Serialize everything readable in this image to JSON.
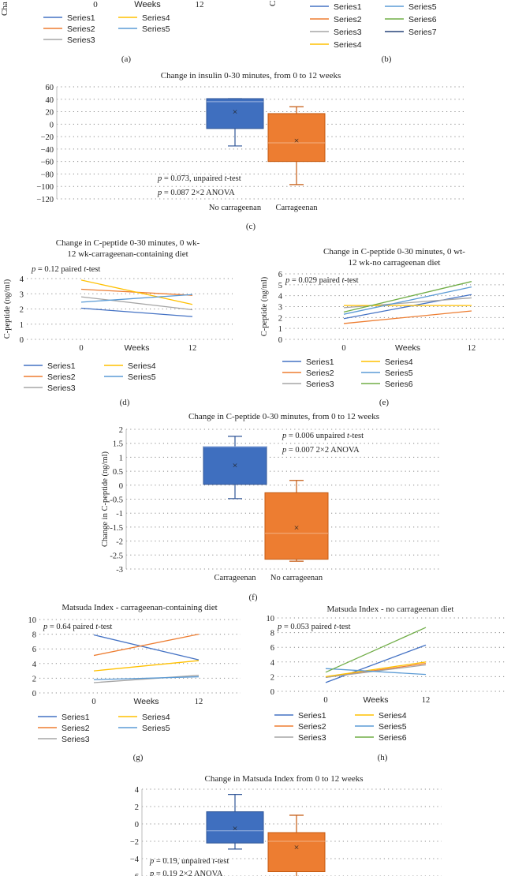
{
  "colors": {
    "blue": "#4472c4",
    "orange": "#ed7d31",
    "gray": "#a5a5a5",
    "yellow": "#ffc000",
    "lightblue": "#5b9bd5",
    "green": "#70ad47",
    "darkblue": "#264478",
    "box_blue": "#3f6fbf",
    "box_orange": "#ed7d31",
    "grid": "#8c8c8c"
  },
  "panel_labels": {
    "a": "(a)",
    "b": "(b)",
    "c": "(c)",
    "d": "(d)",
    "e": "(e)",
    "f": "(f)",
    "g": "(g)",
    "h": "(h)"
  },
  "top_fragments": {
    "a_ylabel_partial": "Cha",
    "a_tick0": "0",
    "a_tick12": "12",
    "a_xlabel": "Weeks",
    "b_ylabel_partial": "C",
    "a_legend": [
      "Series1",
      "Series4",
      "Series2",
      "Series5",
      "Series3"
    ],
    "b_legend": [
      "Series1",
      "Series5",
      "Series2",
      "Series6",
      "Series3",
      "Series7",
      "Series4"
    ]
  },
  "chart_data": [
    {
      "id": "c",
      "type": "box",
      "title": "Change in insulin 0-30 minutes, from 0 to 12 weeks",
      "ylim": [
        -120,
        60
      ],
      "yticks": [
        "60",
        "40",
        "20",
        "0",
        "−20",
        "−40",
        "−60",
        "−80",
        "−100",
        "−120"
      ],
      "categories": [
        "No carrageenan",
        "Carrageenan"
      ],
      "boxes": [
        {
          "min": -35,
          "q1": -7,
          "median": 36,
          "q3": 41,
          "max": 41,
          "mean": 20
        },
        {
          "min": -97,
          "q1": -60,
          "median": -30,
          "q3": 17,
          "max": 28,
          "mean": -26
        }
      ],
      "annotations": [
        {
          "p": "p",
          "rest": " = 0.073, unpaired ",
          "t": "t",
          "tail": "-test"
        },
        {
          "p": "p",
          "rest": " = 0.087 2×2 ANOVA",
          "t": "",
          "tail": ""
        }
      ]
    },
    {
      "id": "d",
      "type": "line",
      "title_lines": [
        "Change in C-peptide 0-30 minutes, 0 wk-",
        "12 wk-carrageenan-containing diet"
      ],
      "ylabel": "C-peptide (ng/ml)",
      "xlabel": "Weeks",
      "ylim": [
        0,
        4
      ],
      "yticks": [
        "0",
        "1",
        "2",
        "3",
        "4"
      ],
      "x": [
        "0",
        "12"
      ],
      "series": [
        {
          "name": "Series1",
          "values": [
            2.05,
            1.5
          ]
        },
        {
          "name": "Series2",
          "values": [
            3.3,
            2.9
          ]
        },
        {
          "name": "Series3",
          "values": [
            2.8,
            1.95
          ]
        },
        {
          "name": "Series4",
          "values": [
            3.9,
            2.3
          ]
        },
        {
          "name": "Series5",
          "values": [
            2.45,
            2.95
          ]
        }
      ],
      "annotation": {
        "p": "p",
        "rest": " = 0.12 paired ",
        "t": "t",
        "tail": "-test"
      }
    },
    {
      "id": "e",
      "type": "line",
      "title_lines": [
        "Change in C-peptide 0-30 minutes, 0 wt-",
        "12 wk-no carrageenan diet"
      ],
      "ylabel": "C-peptide (ng/ml)",
      "xlabel": "Weeks",
      "ylim": [
        0,
        6
      ],
      "yticks": [
        "0",
        "1",
        "2",
        "3",
        "4",
        "5",
        "6"
      ],
      "x": [
        "0",
        "12"
      ],
      "series": [
        {
          "name": "Series1",
          "values": [
            1.9,
            4.1
          ]
        },
        {
          "name": "Series2",
          "values": [
            1.45,
            2.6
          ]
        },
        {
          "name": "Series3",
          "values": [
            2.9,
            3.8
          ]
        },
        {
          "name": "Series4",
          "values": [
            3.1,
            3.1
          ]
        },
        {
          "name": "Series5",
          "values": [
            2.3,
            4.8
          ]
        },
        {
          "name": "Series6",
          "values": [
            2.5,
            5.3
          ]
        }
      ],
      "annotation": {
        "p": "p",
        "rest": " = 0.029 paired ",
        "t": "t",
        "tail": "-test"
      }
    },
    {
      "id": "f",
      "type": "box",
      "title": "Change in C-peptide 0-30 minutes, from 0 to 12 weeks",
      "ylabel": "Change in C-peptide (ng/ml)",
      "ylim": [
        -3,
        2
      ],
      "yticks": [
        "2",
        "1.5",
        "1",
        "0.5",
        "0",
        "-0.5",
        "-1",
        "-1.5",
        "-2",
        "-2.5",
        "-3"
      ],
      "categories": [
        "Carrageenan",
        "No carrageenan"
      ],
      "boxes": [
        {
          "min": -0.48,
          "q1": 0.03,
          "median": 1.38,
          "q3": 1.38,
          "max": 1.75,
          "mean": 0.72
        },
        {
          "min": -2.72,
          "q1": -2.65,
          "median": -1.72,
          "q3": -0.27,
          "max": 0.17,
          "mean": -1.52
        }
      ],
      "annotations": [
        {
          "p": "p",
          "rest": " = 0.006 unpaired ",
          "t": "t",
          "tail": "-test"
        },
        {
          "p": "p",
          "rest": " = 0.007 2×2 ANOVA",
          "t": "",
          "tail": ""
        }
      ]
    },
    {
      "id": "g",
      "type": "line",
      "title": "Matsuda Index - carrageenan-containing diet",
      "xlabel": "Weeks",
      "ylim": [
        0,
        10
      ],
      "yticks": [
        "0",
        "2",
        "4",
        "6",
        "8",
        "10"
      ],
      "x": [
        "0",
        "12"
      ],
      "series": [
        {
          "name": "Series1",
          "values": [
            7.9,
            4.5
          ]
        },
        {
          "name": "Series2",
          "values": [
            5.1,
            8.0
          ]
        },
        {
          "name": "Series3",
          "values": [
            1.4,
            2.4
          ]
        },
        {
          "name": "Series4",
          "values": [
            3.0,
            4.4
          ]
        },
        {
          "name": "Series5",
          "values": [
            1.8,
            2.2
          ]
        }
      ],
      "annotation": {
        "p": "p",
        "rest": " = 0.64 paired ",
        "t": "t",
        "tail": "-test"
      }
    },
    {
      "id": "h",
      "type": "line",
      "title": "Matsuda Index - no carrageenan diet",
      "xlabel": "Weeks",
      "ylim": [
        0,
        10
      ],
      "yticks": [
        "0",
        "2",
        "4",
        "6",
        "8",
        "10"
      ],
      "x": [
        "0",
        "12"
      ],
      "series": [
        {
          "name": "Series1",
          "values": [
            1.2,
            6.3
          ]
        },
        {
          "name": "Series2",
          "values": [
            1.9,
            3.8
          ]
        },
        {
          "name": "Series3",
          "values": [
            1.9,
            3.6
          ]
        },
        {
          "name": "Series4",
          "values": [
            2.0,
            4.0
          ]
        },
        {
          "name": "Series5",
          "values": [
            3.1,
            2.3
          ]
        },
        {
          "name": "Series6",
          "values": [
            2.6,
            8.7
          ]
        }
      ],
      "annotation": {
        "p": "p",
        "rest": " = 0.053 paired ",
        "t": "t",
        "tail": "-test"
      }
    },
    {
      "id": "i",
      "type": "box",
      "title": "Change in Matsuda Index from 0 to 12 weeks",
      "ylim": [
        -6,
        4
      ],
      "yticks": [
        "4",
        "2",
        "0",
        "−2",
        "−4",
        "−6"
      ],
      "categories": [
        "",
        ""
      ],
      "boxes": [
        {
          "min": -2.9,
          "q1": -2.2,
          "median": -0.8,
          "q3": 1.4,
          "max": 3.4,
          "mean": -0.5
        },
        {
          "min": -6.3,
          "q1": -5.5,
          "median": -2.0,
          "q3": -1.0,
          "max": 1.0,
          "mean": -2.7
        }
      ],
      "annotations": [
        {
          "p": "p",
          "rest": " = 0.19, unpaired ",
          "t": "t",
          "tail": "-test"
        },
        {
          "p": "p",
          "rest": " = 0.19 2×2 ANOVA",
          "t": "",
          "tail": ""
        }
      ]
    }
  ]
}
